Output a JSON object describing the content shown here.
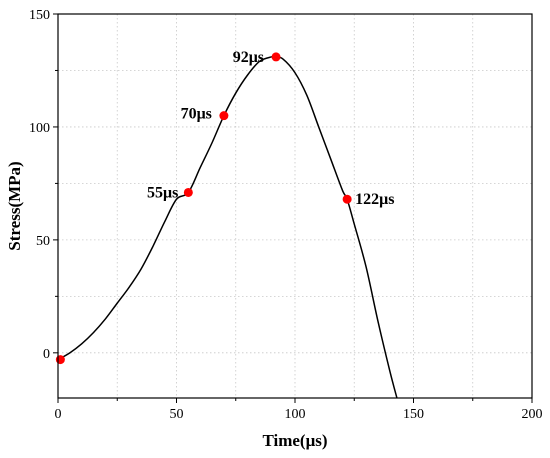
{
  "chart_data": {
    "type": "line",
    "title": "",
    "xlabel": "Time(μs)",
    "ylabel": "Stress(MPa)",
    "xlim": [
      0,
      200
    ],
    "ylim": [
      -20,
      150
    ],
    "xticks": [
      0,
      50,
      100,
      150,
      200
    ],
    "yticks": [
      0,
      50,
      100,
      150
    ],
    "grid": true,
    "legend": "none",
    "colors": {
      "line": "#000000",
      "marker": "#ff0000",
      "grid": "#c8c8c8",
      "axis": "#000000"
    },
    "series": [
      {
        "x": [
          0,
          5,
          10,
          15,
          20,
          25,
          30,
          35,
          40,
          45,
          50,
          55,
          60,
          65,
          70,
          75,
          80,
          85,
          90,
          92,
          95,
          100,
          105,
          110,
          115,
          120,
          122,
          125,
          130,
          135,
          140,
          143
        ],
        "y": [
          -3,
          0,
          4,
          9,
          15,
          22,
          29,
          37,
          47,
          58,
          68,
          71,
          82,
          93,
          105,
          115,
          123,
          129,
          131,
          131,
          130,
          124,
          114,
          100,
          86,
          72,
          68,
          57,
          38,
          14,
          -8,
          -20
        ]
      }
    ],
    "highlights": [
      {
        "x": 1,
        "y": -3,
        "label": ""
      },
      {
        "x": 55,
        "y": 71,
        "label": "55μs"
      },
      {
        "x": 70,
        "y": 105,
        "label": "70μs"
      },
      {
        "x": 92,
        "y": 131,
        "label": "92μs"
      },
      {
        "x": 122,
        "y": 68,
        "label": "122μs"
      }
    ]
  }
}
